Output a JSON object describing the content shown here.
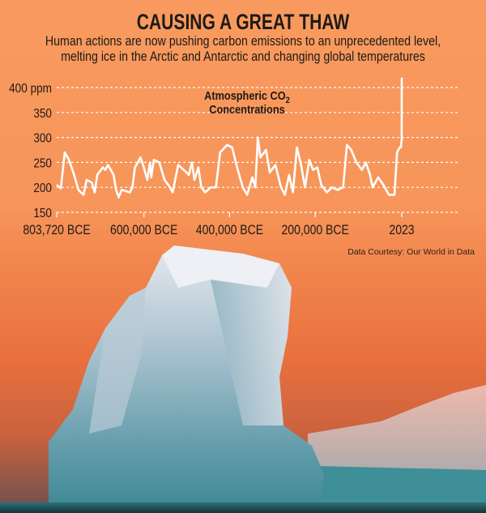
{
  "header": {
    "title": "CAUSING A GREAT THAW",
    "subtitle_lines": [
      "Human actions are now pushing carbon emissions to an unprecedented level,",
      "melting ice in the Arctic and Antarctic and changing global temperatures"
    ]
  },
  "credit": "Data Courtesy: Our World in Data",
  "colors": {
    "line": "#ffffff",
    "grid": "#ffffff",
    "background": "#f7955a",
    "text": "#1e1a17"
  },
  "chart_data": {
    "type": "line",
    "title_line1": "Atmospheric CO",
    "title_sub": "2",
    "title_line2": "Concentrations",
    "ylabel": "",
    "xlabel": "",
    "ylim": [
      150,
      420
    ],
    "xlim": [
      -803720,
      2023
    ],
    "grid": true,
    "y_ticks": [
      {
        "value": 150,
        "label": "150"
      },
      {
        "value": 200,
        "label": "200"
      },
      {
        "value": 250,
        "label": "250"
      },
      {
        "value": 300,
        "label": "300"
      },
      {
        "value": 350,
        "label": "350"
      },
      {
        "value": 400,
        "label": "400 ppm"
      }
    ],
    "x_ticks": [
      {
        "value": -803720,
        "label": "803,720 BCE"
      },
      {
        "value": -600000,
        "label": "600,000 BCE"
      },
      {
        "value": -400000,
        "label": "400,000 BCE"
      },
      {
        "value": -200000,
        "label": "200,000 BCE"
      },
      {
        "value": 2023,
        "label": "2023"
      }
    ],
    "series": [
      {
        "x": [
          -803720,
          -794000,
          -785000,
          -775000,
          -763000,
          -753000,
          -741000,
          -734000,
          -722000,
          -715000,
          -709000,
          -696000,
          -690000,
          -684000,
          -671000,
          -665000,
          -659000,
          -652000,
          -633000,
          -627000,
          -621000,
          -608000,
          -602000,
          -592000,
          -586000,
          -583000,
          -577000,
          -564000,
          -552000,
          -539000,
          -533000,
          -520000,
          -507000,
          -495000,
          -488000,
          -482000,
          -473000,
          -466000,
          -457000,
          -444000,
          -432000,
          -422000,
          -406000,
          -394000,
          -381000,
          -369000,
          -359000,
          -347000,
          -340000,
          -334000,
          -328000,
          -315000,
          -306000,
          -293000,
          -280000,
          -271000,
          -261000,
          -252000,
          -243000,
          -233000,
          -224000,
          -214000,
          -205000,
          -195000,
          -186000,
          -173000,
          -161000,
          -148000,
          -135000,
          -126000,
          -116000,
          -104000,
          -91000,
          -82000,
          -72000,
          -66000,
          -53000,
          -41000,
          -28000,
          -15000,
          -9000,
          -3000,
          0,
          1900,
          2023
        ],
        "y": [
          205,
          198,
          270,
          255,
          225,
          195,
          185,
          215,
          210,
          190,
          225,
          240,
          235,
          245,
          225,
          195,
          180,
          195,
          190,
          200,
          240,
          260,
          245,
          215,
          250,
          220,
          255,
          250,
          215,
          200,
          190,
          245,
          235,
          225,
          250,
          215,
          240,
          200,
          190,
          200,
          200,
          270,
          285,
          280,
          235,
          200,
          185,
          220,
          200,
          300,
          260,
          275,
          230,
          245,
          200,
          185,
          225,
          190,
          280,
          245,
          200,
          255,
          235,
          240,
          205,
          190,
          200,
          195,
          200,
          285,
          275,
          250,
          235,
          250,
          225,
          200,
          220,
          205,
          185,
          185,
          270,
          280,
          280,
          296,
          420
        ]
      }
    ]
  }
}
